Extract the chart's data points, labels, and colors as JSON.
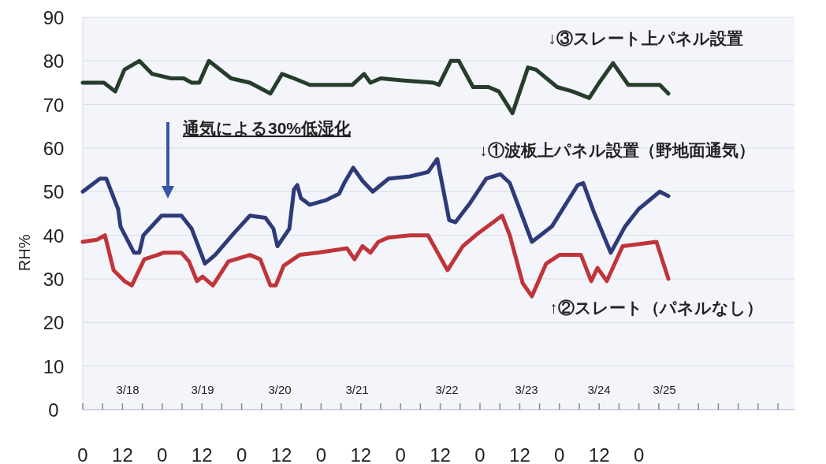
{
  "chart_data": {
    "type": "line",
    "ylabel": "RH%",
    "xlim": [
      "--03-18T00:00",
      "--03-26T23:00"
    ],
    "ylim": [
      0,
      90
    ],
    "yticks": [
      0,
      10,
      20,
      30,
      40,
      50,
      60,
      70,
      80,
      90
    ],
    "grid": "y",
    "xticks": [
      {
        "value": "--03-18T00:00",
        "label": "0"
      },
      {
        "value": "--03-18T06:00",
        "label": null
      },
      {
        "value": "--03-18T12:00",
        "label": "12"
      },
      {
        "value": "--03-18T18:00",
        "label": null
      },
      {
        "value": "--03-19T00:00",
        "label": "0"
      },
      {
        "value": "--03-19T06:00",
        "label": null
      },
      {
        "value": "--03-19T12:00",
        "label": "12"
      },
      {
        "value": "--03-19T18:00",
        "label": null
      },
      {
        "value": "--03-20T00:00",
        "label": "0"
      },
      {
        "value": "--03-20T06:00",
        "label": null
      },
      {
        "value": "--03-20T12:00",
        "label": "12"
      },
      {
        "value": "--03-20T18:00",
        "label": null
      },
      {
        "value": "--03-21T00:00",
        "label": "0"
      },
      {
        "value": "--03-21T06:00",
        "label": null
      },
      {
        "value": "--03-21T12:00",
        "label": "12"
      },
      {
        "value": "--03-21T18:00",
        "label": null
      },
      {
        "value": "--03-22T00:00",
        "label": "0"
      },
      {
        "value": "--03-22T06:00",
        "label": null
      },
      {
        "value": "--03-22T12:00",
        "label": "12"
      },
      {
        "value": "--03-22T18:00",
        "label": null
      },
      {
        "value": "--03-23T00:00",
        "label": "0"
      },
      {
        "value": "--03-23T06:00",
        "label": null
      },
      {
        "value": "--03-23T12:00",
        "label": "12"
      },
      {
        "value": "--03-23T18:00",
        "label": null
      },
      {
        "value": "--03-24T00:00",
        "label": "0"
      },
      {
        "value": "--03-24T06:00",
        "label": null
      },
      {
        "value": "--03-24T12:00",
        "label": "12"
      },
      {
        "value": "--03-24T18:00",
        "label": null
      },
      {
        "value": "--03-25T00:00",
        "label": "0"
      },
      {
        "value": "--03-25T06:00",
        "label": null
      },
      {
        "value": "--03-25T12:00",
        "label": null
      },
      {
        "value": "--03-25T18:00",
        "label": null
      },
      {
        "value": "--03-26T00:00",
        "label": null
      },
      {
        "value": "--03-26T06:00",
        "label": null
      },
      {
        "value": "--03-26T12:00",
        "label": null
      },
      {
        "value": "--03-26T18:00",
        "label": null
      }
    ],
    "series": [
      {
        "name": "↓①波板上パネル設置（野地面通気）",
        "color": "#2e3b78",
        "x": [
          "--03-18T00:00",
          "--03-18T05:12",
          "--03-18T07:06",
          "--03-18T10:42",
          "--03-18T11:24",
          "--03-18T15:30",
          "--03-18T17:06",
          "--03-18T18:18",
          "--03-18T23:48",
          "--03-19T05:48",
          "--03-19T08:54",
          "--03-19T12:54",
          "--03-19T16:00",
          "--03-19T21:42",
          "--03-20T02:30",
          "--03-20T07:12",
          "--03-20T09:36",
          "--03-20T10:48",
          "--03-20T14:24",
          "--03-20T15:48",
          "--03-20T16:48",
          "--03-20T17:54",
          "--03-20T20:36",
          "--03-21T01:18",
          "--03-21T05:24",
          "--03-21T07:00",
          "--03-21T09:42",
          "--03-21T12:30",
          "--03-21T15:36",
          "--03-21T20:24",
          "--03-22T02:48",
          "--03-22T08:18",
          "--03-22T11:06",
          "--03-22T14:42",
          "--03-22T16:36",
          "--03-22T21:06",
          "--03-23T01:54",
          "--03-23T06:12",
          "--03-23T09:00",
          "--03-23T15:42",
          "--03-23T21:42",
          "--03-24T05:30",
          "--03-24T07:12",
          "--03-24T10:18",
          "--03-24T15:30",
          "--03-24T19:48",
          "--03-24T23:54",
          "--03-25T06:18",
          "--03-25T08:54"
        ],
        "values": [
          50,
          53,
          53,
          46,
          42,
          36,
          36,
          40,
          44.5,
          44.5,
          41.5,
          33.5,
          35.5,
          40.5,
          44.5,
          44,
          41.5,
          37.5,
          41.5,
          50.5,
          51.5,
          48.5,
          47,
          48,
          49.5,
          52,
          55.5,
          52.5,
          50,
          53,
          53.5,
          54.5,
          57.5,
          43.5,
          43,
          47.5,
          53,
          54,
          52,
          38.5,
          42,
          51.5,
          52,
          45.5,
          36,
          42,
          46,
          50,
          49
        ]
      },
      {
        "name": "↑②スレート（パネルなし）",
        "color": "#c0343a",
        "x": [
          "--03-18T00:00",
          "--03-18T04:18",
          "--03-18T06:42",
          "--03-18T09:18",
          "--03-18T12:36",
          "--03-18T14:48",
          "--03-18T18:36",
          "--03-18T22:36",
          "--03-19T00:18",
          "--03-19T05:48",
          "--03-19T08:06",
          "--03-19T10:30",
          "--03-19T12:12",
          "--03-19T15:18",
          "--03-19T20:00",
          "--03-20T02:30",
          "--03-20T05:36",
          "--03-20T08:42",
          "--03-20T10:18",
          "--03-20T12:42",
          "--03-20T17:30",
          "--03-20T23:00",
          "--03-21T07:48",
          "--03-21T10:06",
          "--03-21T12:30",
          "--03-21T14:54",
          "--03-21T17:18",
          "--03-21T20:24",
          "--03-22T02:48",
          "--03-22T08:18",
          "--03-22T11:36",
          "--03-22T14:12",
          "--03-22T18:48",
          "--03-22T23:30",
          "--03-23T06:42",
          "--03-23T09:00",
          "--03-23T12:54",
          "--03-23T15:42",
          "--03-23T20:00",
          "--03-24T00:00",
          "--03-24T06:30",
          "--03-24T09:36",
          "--03-24T11:30",
          "--03-24T14:18",
          "--03-24T19:06",
          "--03-25T05:18",
          "--03-25T08:54"
        ],
        "values": [
          38.5,
          39,
          40,
          32,
          29.5,
          28.5,
          34.5,
          35.5,
          36,
          36,
          34,
          29.5,
          30.5,
          28.5,
          34,
          35.5,
          34.5,
          28.5,
          28.5,
          33,
          35.5,
          36,
          37,
          34.5,
          37.5,
          36,
          38.5,
          39.5,
          40,
          40,
          35.5,
          32,
          37.5,
          40.5,
          44.5,
          40,
          29,
          26,
          33.5,
          35.5,
          35.5,
          29.5,
          32.5,
          29.5,
          37.5,
          38.5,
          30
        ]
      },
      {
        "name": "↓③スレート上パネル設置",
        "color": "#263d2b",
        "x": [
          "--03-18T00:00",
          "--03-18T02:54",
          "--03-18T06:24",
          "--03-18T09:48",
          "--03-18T12:36",
          "--03-18T17:06",
          "--03-18T21:00",
          "--03-19T02:42",
          "--03-19T06:30",
          "--03-19T08:54",
          "--03-19T11:12",
          "--03-19T14:06",
          "--03-19T20:48",
          "--03-20T02:30",
          "--03-20T08:42",
          "--03-20T12:12",
          "--03-20T15:48",
          "--03-20T20:36",
          "--03-21T09:24",
          "--03-21T13:00",
          "--03-21T14:54",
          "--03-21T18:00",
          "--03-22T01:06",
          "--03-22T10:00",
          "--03-22T11:36",
          "--03-22T15:12",
          "--03-22T17:36",
          "--03-22T21:54",
          "--03-23T02:36",
          "--03-23T05:42",
          "--03-23T09:48",
          "--03-23T14:30",
          "--03-23T16:54",
          "--03-23T23:18",
          "--03-24T04:00",
          "--03-24T09:00",
          "--03-24T12:00",
          "--03-24T16:12",
          "--03-24T20:48",
          "--03-25T06:18",
          "--03-25T08:54"
        ],
        "values": [
          75,
          75,
          75,
          73,
          78,
          80,
          77,
          76,
          76,
          75,
          75,
          80,
          76,
          75,
          72.5,
          77,
          76,
          74.5,
          74.5,
          77,
          75,
          76,
          75.5,
          75,
          74.5,
          80,
          80,
          74,
          74,
          73,
          68,
          78.5,
          78,
          74,
          73,
          71.5,
          75,
          79.5,
          74.5,
          74.5,
          72.5
        ]
      }
    ],
    "annotations": [
      "通気による30%低湿化",
      "3/18",
      "3/19",
      "3/20",
      "3/21",
      "3/22",
      "3/23",
      "3/24",
      "3/25"
    ]
  }
}
